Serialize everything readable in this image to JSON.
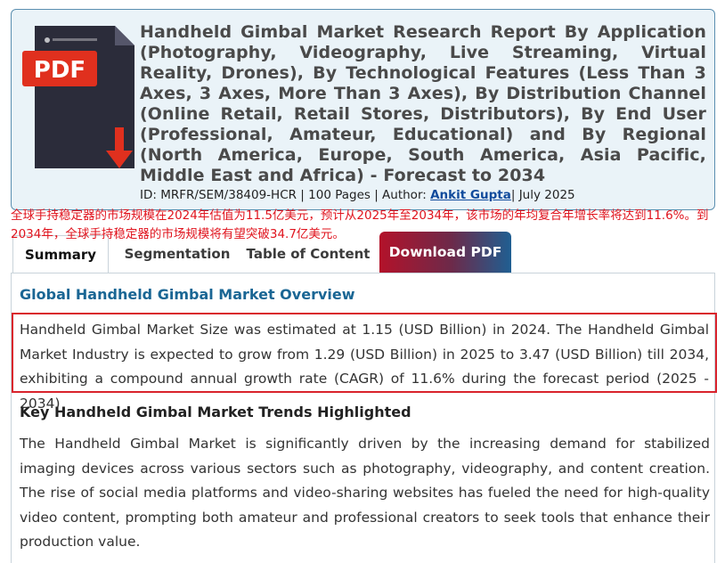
{
  "report": {
    "pdf_badge": "PDF",
    "title": "Handheld Gimbal Market Research Report By Application (Photography, Videography, Live Streaming, Virtual Reality, Drones), By Technological Features (Less Than 3 Axes, 3 Axes, More Than 3 Axes), By Distribution Channel (Online Retail, Retail Stores, Distributors), By End User (Professional, Amateur, Educational) and By Regional (North America, Europe, South America, Asia Pacific, Middle East and Africa) - Forecast to 2034",
    "meta_prefix": "ID: MRFR/SEM/38409-HCR | 100 Pages | Author: ",
    "author": "Ankit Gupta",
    "meta_suffix": "| July 2025"
  },
  "annotation_cn": "全球手持稳定器的市场规模在2024年估值为11.5亿美元，预计从2025年至2034年，该市场的年均复合年增长率将达到11.6%。到2034年，全球手持稳定器的市场规模将有望突破34.7亿美元。",
  "tabs": {
    "summary": "Summary",
    "segmentation": "Segmentation",
    "toc": "Table of Content",
    "download": "Download PDF"
  },
  "content": {
    "overview_heading": "Global Handheld Gimbal Market Overview",
    "size_text": "Handheld Gimbal Market Size was estimated at 1.15 (USD Billion) in 2024. The Handheld Gimbal Market Industry is expected to grow from 1.29 (USD Billion) in 2025 to 3.47 (USD Billion) till 2034, exhibiting a compound annual growth rate (CAGR) of 11.6% during the forecast period (2025 - 2034)",
    "trends_heading": "Key Handheld Gimbal Market Trends Highlighted",
    "trends_text": "The Handheld Gimbal Market is significantly driven by the increasing demand for stabilized imaging devices across various sectors such as photography, videography, and content creation. The rise of social media platforms and video-sharing websites has fueled the need for high-quality video content, prompting both amateur and professional creators to seek tools that enhance their production value."
  },
  "colors": {
    "accent_blue": "#1a6694",
    "highlight_red": "#d9232c",
    "pdf_red": "#e0301e"
  }
}
